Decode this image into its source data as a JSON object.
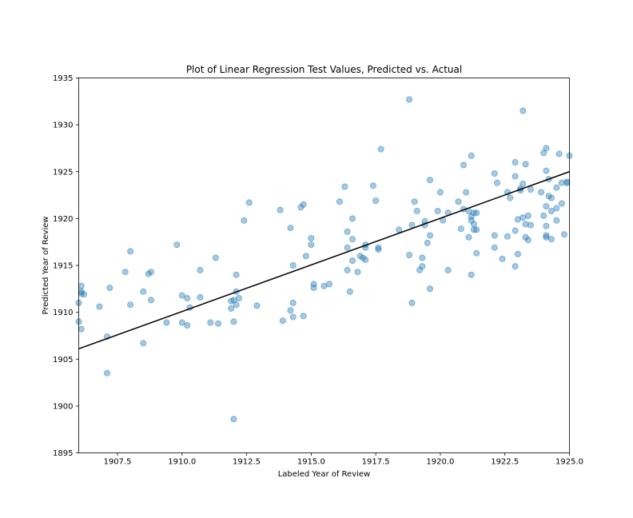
{
  "chart_data": {
    "type": "scatter",
    "title": "Plot of Linear Regression Test Values, Predicted vs. Actual",
    "xlabel": "Labeled Year of Review",
    "ylabel": "Predicted Year of Review",
    "xlim": [
      1906.0,
      1925.0
    ],
    "ylim": [
      1895,
      1935
    ],
    "x_ticks": [
      "1907.5",
      "1910.0",
      "1912.5",
      "1915.0",
      "1917.5",
      "1920.0",
      "1922.5",
      "1925.0"
    ],
    "y_ticks": [
      "1895",
      "1900",
      "1905",
      "1910",
      "1915",
      "1920",
      "1925",
      "1930",
      "1935"
    ],
    "grid": false,
    "legend": "none",
    "point_color": "#1f77b4",
    "line_color": "#000000",
    "fit_line": {
      "x": [
        1906.0,
        1925.0
      ],
      "y": [
        1906.1,
        1925.0
      ]
    },
    "points": [
      [
        1906.0,
        1911.0
      ],
      [
        1906.0,
        1909.0
      ],
      [
        1906.1,
        1908.2
      ],
      [
        1906.1,
        1912.2
      ],
      [
        1906.1,
        1912.8
      ],
      [
        1906.2,
        1911.9
      ],
      [
        1906.1,
        1912.0
      ],
      [
        1906.8,
        1910.6
      ],
      [
        1907.1,
        1907.4
      ],
      [
        1907.1,
        1903.5
      ],
      [
        1907.2,
        1912.6
      ],
      [
        1907.8,
        1914.3
      ],
      [
        1908.0,
        1916.5
      ],
      [
        1908.0,
        1910.8
      ],
      [
        1908.5,
        1912.2
      ],
      [
        1908.5,
        1906.7
      ],
      [
        1908.7,
        1914.1
      ],
      [
        1908.8,
        1914.3
      ],
      [
        1908.8,
        1911.3
      ],
      [
        1909.4,
        1908.9
      ],
      [
        1909.8,
        1917.2
      ],
      [
        1910.0,
        1911.8
      ],
      [
        1910.0,
        1908.9
      ],
      [
        1910.2,
        1911.5
      ],
      [
        1910.3,
        1910.5
      ],
      [
        1910.2,
        1908.6
      ],
      [
        1910.7,
        1914.5
      ],
      [
        1910.7,
        1911.6
      ],
      [
        1911.1,
        1908.9
      ],
      [
        1911.3,
        1915.8
      ],
      [
        1911.4,
        1908.8
      ],
      [
        1911.9,
        1911.2
      ],
      [
        1911.9,
        1910.4
      ],
      [
        1912.0,
        1911.3
      ],
      [
        1912.1,
        1910.8
      ],
      [
        1912.1,
        1914.0
      ],
      [
        1912.1,
        1912.2
      ],
      [
        1912.2,
        1911.5
      ],
      [
        1912.0,
        1909.0
      ],
      [
        1912.0,
        1898.6
      ],
      [
        1912.4,
        1919.8
      ],
      [
        1912.6,
        1921.7
      ],
      [
        1912.9,
        1910.7
      ],
      [
        1913.8,
        1920.9
      ],
      [
        1913.9,
        1909.1
      ],
      [
        1914.2,
        1919.0
      ],
      [
        1914.2,
        1910.2
      ],
      [
        1914.3,
        1911.0
      ],
      [
        1914.3,
        1909.5
      ],
      [
        1914.3,
        1915.0
      ],
      [
        1914.6,
        1921.2
      ],
      [
        1914.7,
        1921.5
      ],
      [
        1914.7,
        1909.6
      ],
      [
        1914.8,
        1916.0
      ],
      [
        1915.0,
        1917.2
      ],
      [
        1915.0,
        1917.9
      ],
      [
        1915.1,
        1913.0
      ],
      [
        1915.1,
        1912.6
      ],
      [
        1915.5,
        1912.8
      ],
      [
        1915.7,
        1913.0
      ],
      [
        1916.1,
        1921.8
      ],
      [
        1916.3,
        1923.4
      ],
      [
        1916.4,
        1918.6
      ],
      [
        1916.4,
        1916.9
      ],
      [
        1916.5,
        1912.2
      ],
      [
        1916.4,
        1914.5
      ],
      [
        1916.6,
        1915.5
      ],
      [
        1916.6,
        1917.8
      ],
      [
        1916.6,
        1920.0
      ],
      [
        1916.8,
        1914.3
      ],
      [
        1916.9,
        1916.0
      ],
      [
        1917.0,
        1915.8
      ],
      [
        1917.1,
        1917.2
      ],
      [
        1917.1,
        1916.9
      ],
      [
        1917.1,
        1915.6
      ],
      [
        1917.4,
        1923.5
      ],
      [
        1917.5,
        1921.9
      ],
      [
        1917.6,
        1916.9
      ],
      [
        1917.6,
        1916.7
      ],
      [
        1917.7,
        1927.4
      ],
      [
        1918.4,
        1918.8
      ],
      [
        1918.8,
        1932.7
      ],
      [
        1918.8,
        1916.1
      ],
      [
        1918.9,
        1919.3
      ],
      [
        1918.9,
        1911.0
      ],
      [
        1919.0,
        1921.8
      ],
      [
        1919.1,
        1920.8
      ],
      [
        1919.2,
        1914.5
      ],
      [
        1919.3,
        1915.8
      ],
      [
        1919.4,
        1919.7
      ],
      [
        1919.3,
        1914.9
      ],
      [
        1919.4,
        1919.3
      ],
      [
        1919.5,
        1917.4
      ],
      [
        1919.6,
        1924.1
      ],
      [
        1919.6,
        1918.2
      ],
      [
        1919.6,
        1912.5
      ],
      [
        1919.9,
        1920.8
      ],
      [
        1920.0,
        1922.8
      ],
      [
        1920.1,
        1919.8
      ],
      [
        1920.3,
        1920.6
      ],
      [
        1920.3,
        1914.5
      ],
      [
        1920.7,
        1921.8
      ],
      [
        1920.8,
        1918.9
      ],
      [
        1920.9,
        1925.7
      ],
      [
        1920.9,
        1921.0
      ],
      [
        1921.0,
        1922.8
      ],
      [
        1921.1,
        1920.8
      ],
      [
        1921.1,
        1918.0
      ],
      [
        1921.2,
        1926.7
      ],
      [
        1921.2,
        1919.8
      ],
      [
        1921.2,
        1920.2
      ],
      [
        1921.2,
        1914.0
      ],
      [
        1921.3,
        1920.6
      ],
      [
        1921.3,
        1919.4
      ],
      [
        1921.3,
        1918.8
      ],
      [
        1921.4,
        1918.8
      ],
      [
        1921.4,
        1920.6
      ],
      [
        1921.4,
        1916.3
      ],
      [
        1922.1,
        1924.8
      ],
      [
        1922.1,
        1918.2
      ],
      [
        1922.1,
        1916.9
      ],
      [
        1922.2,
        1923.8
      ],
      [
        1922.4,
        1915.7
      ],
      [
        1922.6,
        1922.8
      ],
      [
        1922.6,
        1918.1
      ],
      [
        1922.7,
        1922.2
      ],
      [
        1922.9,
        1924.5
      ],
      [
        1922.9,
        1926.0
      ],
      [
        1922.9,
        1918.7
      ],
      [
        1922.9,
        1914.9
      ],
      [
        1923.0,
        1919.9
      ],
      [
        1923.0,
        1916.2
      ],
      [
        1923.1,
        1923.0
      ],
      [
        1923.1,
        1923.2
      ],
      [
        1923.2,
        1931.5
      ],
      [
        1923.2,
        1920.1
      ],
      [
        1923.2,
        1923.7
      ],
      [
        1923.3,
        1925.8
      ],
      [
        1923.3,
        1918.0
      ],
      [
        1923.3,
        1919.4
      ],
      [
        1923.4,
        1920.3
      ],
      [
        1923.4,
        1917.7
      ],
      [
        1923.5,
        1923.1
      ],
      [
        1923.5,
        1919.3
      ],
      [
        1923.9,
        1922.8
      ],
      [
        1924.0,
        1927.0
      ],
      [
        1924.0,
        1920.3
      ],
      [
        1924.1,
        1927.5
      ],
      [
        1924.1,
        1925.1
      ],
      [
        1924.1,
        1919.2
      ],
      [
        1924.1,
        1918.0
      ],
      [
        1924.1,
        1921.3
      ],
      [
        1924.1,
        1918.2
      ],
      [
        1924.2,
        1922.4
      ],
      [
        1924.2,
        1924.2
      ],
      [
        1924.3,
        1922.2
      ],
      [
        1924.3,
        1920.8
      ],
      [
        1924.3,
        1917.8
      ],
      [
        1924.5,
        1923.3
      ],
      [
        1924.5,
        1921.1
      ],
      [
        1924.5,
        1919.8
      ],
      [
        1924.6,
        1926.9
      ],
      [
        1924.7,
        1921.6
      ],
      [
        1924.7,
        1923.8
      ],
      [
        1924.8,
        1918.3
      ],
      [
        1924.9,
        1923.8
      ],
      [
        1924.9,
        1923.9
      ],
      [
        1925.0,
        1926.7
      ]
    ]
  }
}
